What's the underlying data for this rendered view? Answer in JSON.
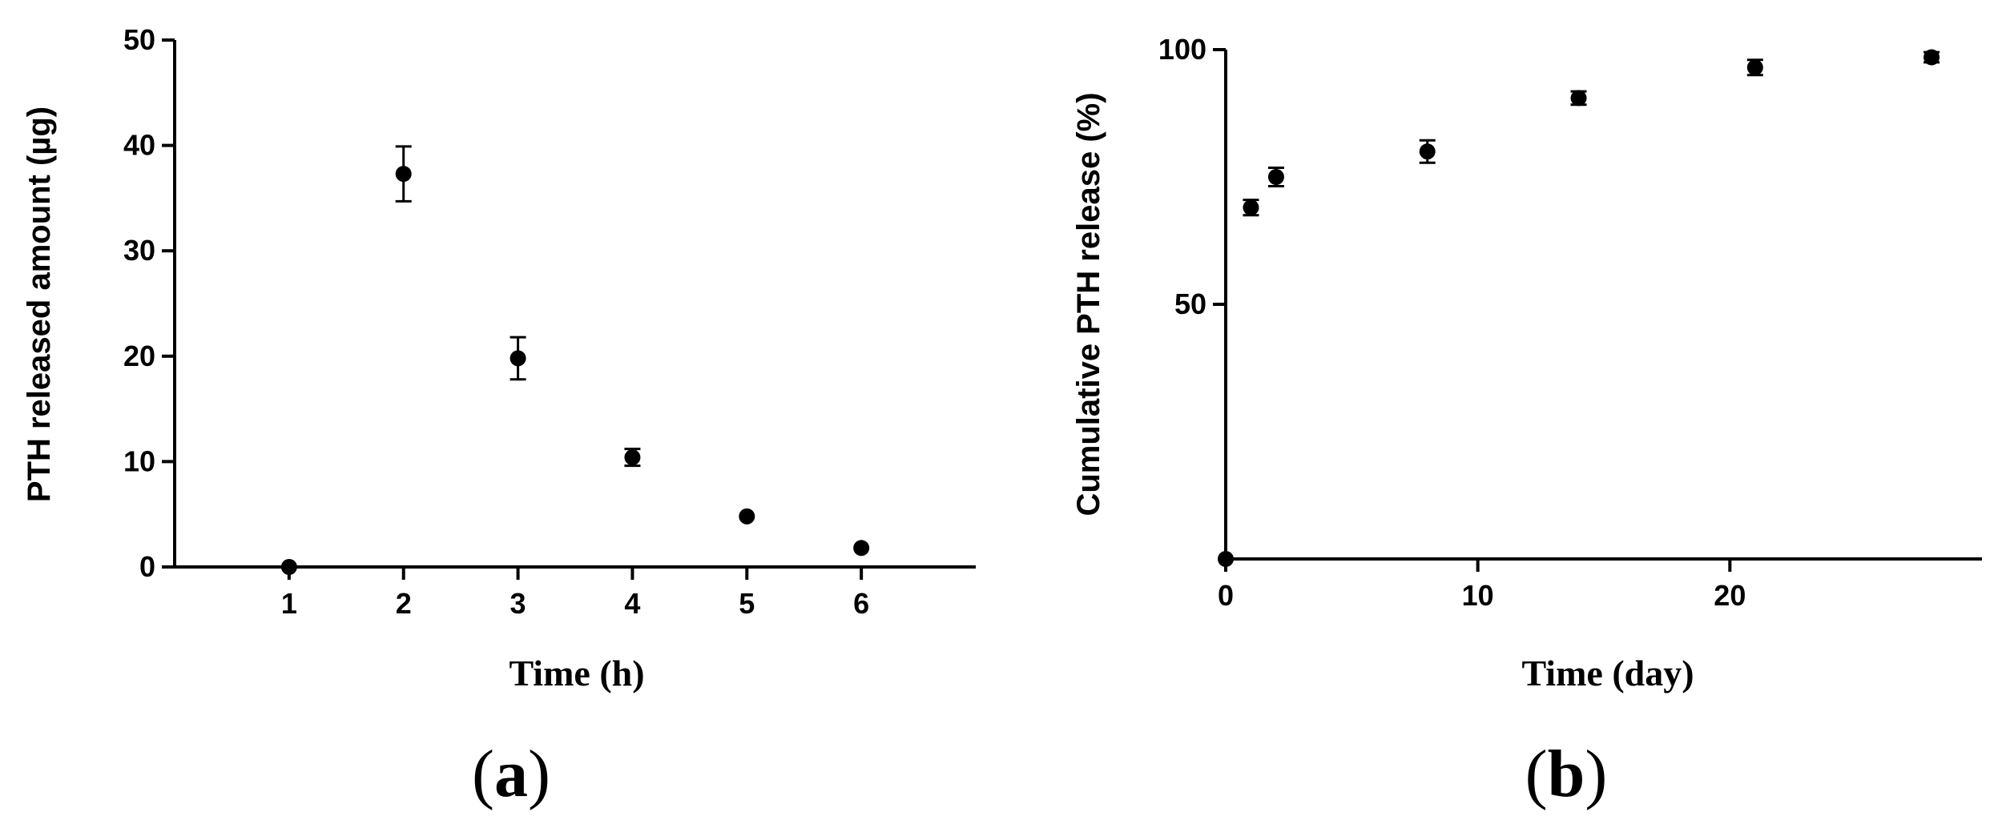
{
  "chart_data": [
    {
      "panel": "(a)",
      "panel_letter": "a",
      "type": "scatter",
      "xlabel": "Time (h)",
      "ylabel": "PTH released amount (µg)",
      "xlim": [
        0,
        7
      ],
      "ylim": [
        0,
        50
      ],
      "xticks": [
        1,
        2,
        3,
        4,
        5,
        6
      ],
      "yticks": [
        0,
        10,
        20,
        30,
        40,
        50
      ],
      "grid": false,
      "series": [
        {
          "points": [
            {
              "x": 1,
              "y": 0,
              "err": 0
            },
            {
              "x": 2,
              "y": 37.3,
              "err": 2.6
            },
            {
              "x": 3,
              "y": 19.8,
              "err": 2.0
            },
            {
              "x": 4,
              "y": 10.4,
              "err": 0.8
            },
            {
              "x": 5,
              "y": 4.8,
              "err": 0
            },
            {
              "x": 6,
              "y": 1.8,
              "err": 0
            }
          ]
        }
      ]
    },
    {
      "panel": "(b)",
      "panel_letter": "b",
      "type": "scatter",
      "xlabel": "Time (day)",
      "ylabel": "Cumulative PTH release (%)",
      "xlim": [
        0,
        30
      ],
      "ylim": [
        0,
        100
      ],
      "xticks": [
        0,
        10,
        20
      ],
      "yticks": [
        50,
        100
      ],
      "grid": false,
      "series": [
        {
          "points": [
            {
              "x": 0,
              "y": 0,
              "err": 0
            },
            {
              "x": 1,
              "y": 69,
              "err": 1.5
            },
            {
              "x": 2,
              "y": 75,
              "err": 1.8
            },
            {
              "x": 8,
              "y": 80,
              "err": 2.2
            },
            {
              "x": 14,
              "y": 90.5,
              "err": 1.3
            },
            {
              "x": 21,
              "y": 96.5,
              "err": 1.5
            },
            {
              "x": 28,
              "y": 98.5,
              "err": 1.0
            }
          ]
        }
      ]
    }
  ]
}
